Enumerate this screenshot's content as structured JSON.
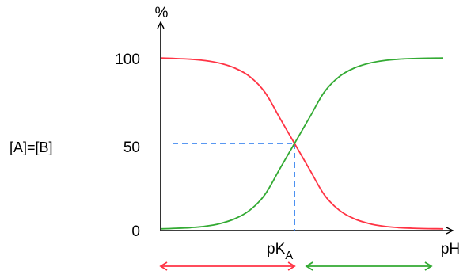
{
  "chart_data": {
    "type": "line",
    "ylabel": "%",
    "xlabel": "pH",
    "yticks": [
      {
        "value": 100,
        "label": "100"
      },
      {
        "value": 50,
        "label": "50"
      },
      {
        "value": 0,
        "label": "0"
      }
    ],
    "ylim": [
      0,
      100
    ],
    "xlim": [
      -4.5,
      5
    ],
    "pka": {
      "x": 0,
      "label_main": "pK",
      "label_sub": "A"
    },
    "midpoint_label": "[A]=[B]",
    "midpoint_value": 50,
    "series": [
      {
        "color": "#ff3344",
        "x": [
          -4.5,
          -4,
          -3.5,
          -3,
          -2.5,
          -2,
          -1.5,
          -1,
          -0.5,
          0,
          0.5,
          1,
          1.5,
          2,
          2.5,
          3,
          3.5,
          4,
          4.5,
          5
        ],
        "values": [
          99.9,
          99.6,
          99.2,
          98.4,
          96.8,
          94.0,
          89,
          80,
          65,
          50,
          35,
          20,
          11,
          6,
          3.2,
          1.6,
          0.8,
          0.4,
          0.2,
          0.1
        ]
      },
      {
        "color": "#33aa33",
        "x": [
          -4.5,
          -4,
          -3.5,
          -3,
          -2.5,
          -2,
          -1.5,
          -1,
          -0.5,
          0,
          0.5,
          1,
          1.5,
          2,
          2.5,
          3,
          3.5,
          4,
          4.5,
          5
        ],
        "values": [
          0.1,
          0.4,
          0.8,
          1.6,
          3.2,
          6.0,
          11,
          20,
          35,
          50,
          65,
          80,
          89,
          94,
          96.8,
          98.4,
          99.2,
          99.6,
          99.8,
          99.9
        ]
      }
    ],
    "range_arrows": [
      {
        "color": "#ff3344",
        "from": -4.5,
        "to": 0
      },
      {
        "color": "#33aa33",
        "from": 0.4,
        "to": 4.6
      }
    ],
    "guide_color": "#2277ee"
  }
}
